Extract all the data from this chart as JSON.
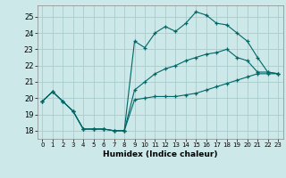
{
  "xlabel": "Humidex (Indice chaleur)",
  "bg_color": "#cce8e8",
  "grid_color": "#aacccc",
  "line_color": "#006666",
  "xlim": [
    -0.5,
    23.5
  ],
  "ylim": [
    17.5,
    25.7
  ],
  "xticks": [
    0,
    1,
    2,
    3,
    4,
    5,
    6,
    7,
    8,
    9,
    10,
    11,
    12,
    13,
    14,
    15,
    16,
    17,
    18,
    19,
    20,
    21,
    22,
    23
  ],
  "yticks": [
    18,
    19,
    20,
    21,
    22,
    23,
    24,
    25
  ],
  "line1_x": [
    0,
    1,
    2,
    3,
    4,
    5,
    6,
    7,
    8,
    9,
    10,
    11,
    12,
    13,
    14,
    15,
    16,
    17,
    18,
    19,
    20,
    21,
    22,
    23
  ],
  "line1_y": [
    19.8,
    20.4,
    19.8,
    19.2,
    18.1,
    18.1,
    18.1,
    18.0,
    18.0,
    19.9,
    20.0,
    20.1,
    20.1,
    20.1,
    20.2,
    20.3,
    20.5,
    20.7,
    20.9,
    21.1,
    21.3,
    21.5,
    21.5,
    21.5
  ],
  "line2_x": [
    0,
    1,
    2,
    3,
    4,
    5,
    6,
    7,
    8,
    9,
    10,
    11,
    12,
    13,
    14,
    15,
    16,
    17,
    18,
    19,
    20,
    21,
    22,
    23
  ],
  "line2_y": [
    19.8,
    20.4,
    19.8,
    19.2,
    18.1,
    18.1,
    18.1,
    18.0,
    18.0,
    23.5,
    23.1,
    24.0,
    24.4,
    24.1,
    24.6,
    25.3,
    25.1,
    24.6,
    24.5,
    24.0,
    23.5,
    22.5,
    21.6,
    21.5
  ],
  "line3_x": [
    0,
    1,
    2,
    3,
    4,
    5,
    6,
    7,
    8,
    9,
    10,
    11,
    12,
    13,
    14,
    15,
    16,
    17,
    18,
    19,
    20,
    21,
    22,
    23
  ],
  "line3_y": [
    19.8,
    20.4,
    19.8,
    19.2,
    18.1,
    18.1,
    18.1,
    18.0,
    18.0,
    20.5,
    21.0,
    21.5,
    21.8,
    22.0,
    22.3,
    22.5,
    22.7,
    22.8,
    23.0,
    22.5,
    22.3,
    21.6,
    21.6,
    21.5
  ]
}
